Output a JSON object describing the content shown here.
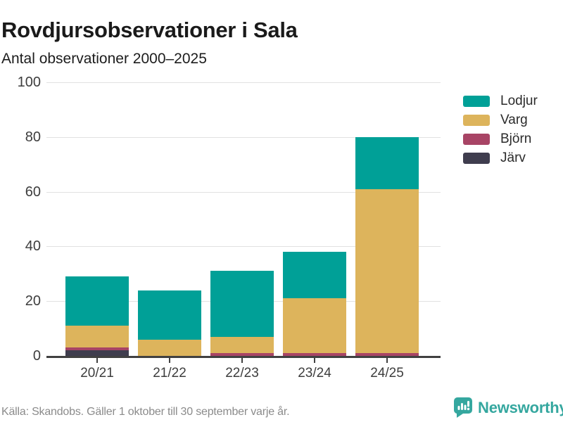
{
  "title": "Rovdjursobservationer i Sala",
  "subtitle": "Antal observationer 2000–2025",
  "chart_data": {
    "type": "bar",
    "stacked": true,
    "title": "Rovdjursobservationer i Sala",
    "subtitle": "Antal observationer 2000–2025",
    "categories": [
      "20/21",
      "21/22",
      "22/23",
      "23/24",
      "24/25"
    ],
    "series": [
      {
        "name": "Lodjur",
        "color": "#00a097",
        "values": [
          18,
          18,
          24,
          17,
          19
        ]
      },
      {
        "name": "Varg",
        "color": "#ddb45c",
        "values": [
          8,
          6,
          6,
          20,
          60
        ]
      },
      {
        "name": "Björn",
        "color": "#a84465",
        "values": [
          1,
          0,
          1,
          1,
          1
        ]
      },
      {
        "name": "Järv",
        "color": "#3f3d4e",
        "values": [
          2,
          0,
          0,
          0,
          0
        ]
      }
    ],
    "stack_order_bottom_to_top": [
      "Järv",
      "Björn",
      "Varg",
      "Lodjur"
    ],
    "totals": [
      29,
      24,
      31,
      38,
      80
    ],
    "ylim": [
      0,
      100
    ],
    "yticks": [
      0,
      20,
      40,
      60,
      80,
      100
    ],
    "xlabel": "",
    "ylabel": "",
    "grid": true,
    "legend_position": "right"
  },
  "colors": {
    "axis": "#414141",
    "gridline": "#e1e1e1",
    "tick_text": "#3d3d3d",
    "brand_teal": "#35a79f"
  },
  "footer": {
    "source": "Källa: Skandobs. Gäller 1 oktober till 30 september varje år."
  },
  "branding": {
    "name": "Newsworthy",
    "logo_icon": "bar-chart-speech-bubble-icon"
  }
}
